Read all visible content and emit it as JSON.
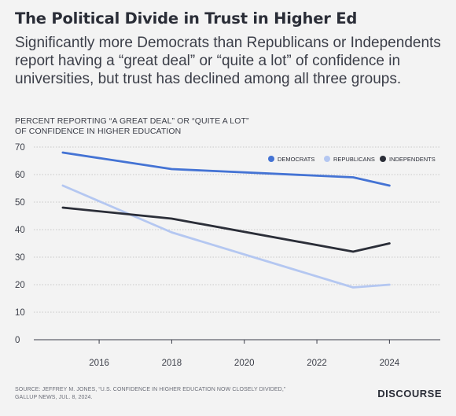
{
  "header": {
    "title": "The Political Divide in Trust in Higher Ed",
    "subtitle": "Significantly more Democrats than Republicans or Independents report having a “great deal” or “quite a lot” of confidence in universities, but trust has declined among all three groups.",
    "ylabel_line1": "PERCENT REPORTING “A GREAT DEAL” OR “QUITE A LOT”",
    "ylabel_line2": "OF CONFIDENCE IN HIGHER EDUCATION"
  },
  "footer": {
    "source_line1": "SOURCE: JEFFREY M. JONES, “U.S. CONFIDENCE IN HIGHER EDUCATION NOW CLOSELY DIVIDED,”",
    "source_line2": "GALLUP NEWS, JUL. 8, 2024.",
    "brand": "DISCOURSE"
  },
  "chart_data": {
    "type": "line",
    "xlim": [
      2014.2,
      2025.4
    ],
    "ylim": [
      0,
      70
    ],
    "x_ticks": [
      2016,
      2018,
      2020,
      2022,
      2024
    ],
    "y_ticks": [
      0,
      10,
      20,
      30,
      40,
      50,
      60,
      70
    ],
    "grid": "horizontal",
    "legend_position": "top-right",
    "series": [
      {
        "name": "DEMOCRATS",
        "color": "#4473d4",
        "x": [
          2015,
          2018,
          2023,
          2024
        ],
        "y": [
          68,
          62,
          59,
          56
        ]
      },
      {
        "name": "REPUBLICANS",
        "color": "#b4c7f1",
        "x": [
          2015,
          2018,
          2023,
          2024
        ],
        "y": [
          56,
          39,
          19,
          20
        ]
      },
      {
        "name": "INDEPENDENTS",
        "color": "#2b2e38",
        "x": [
          2015,
          2018,
          2023,
          2024
        ],
        "y": [
          48,
          44,
          32,
          35
        ]
      }
    ]
  }
}
